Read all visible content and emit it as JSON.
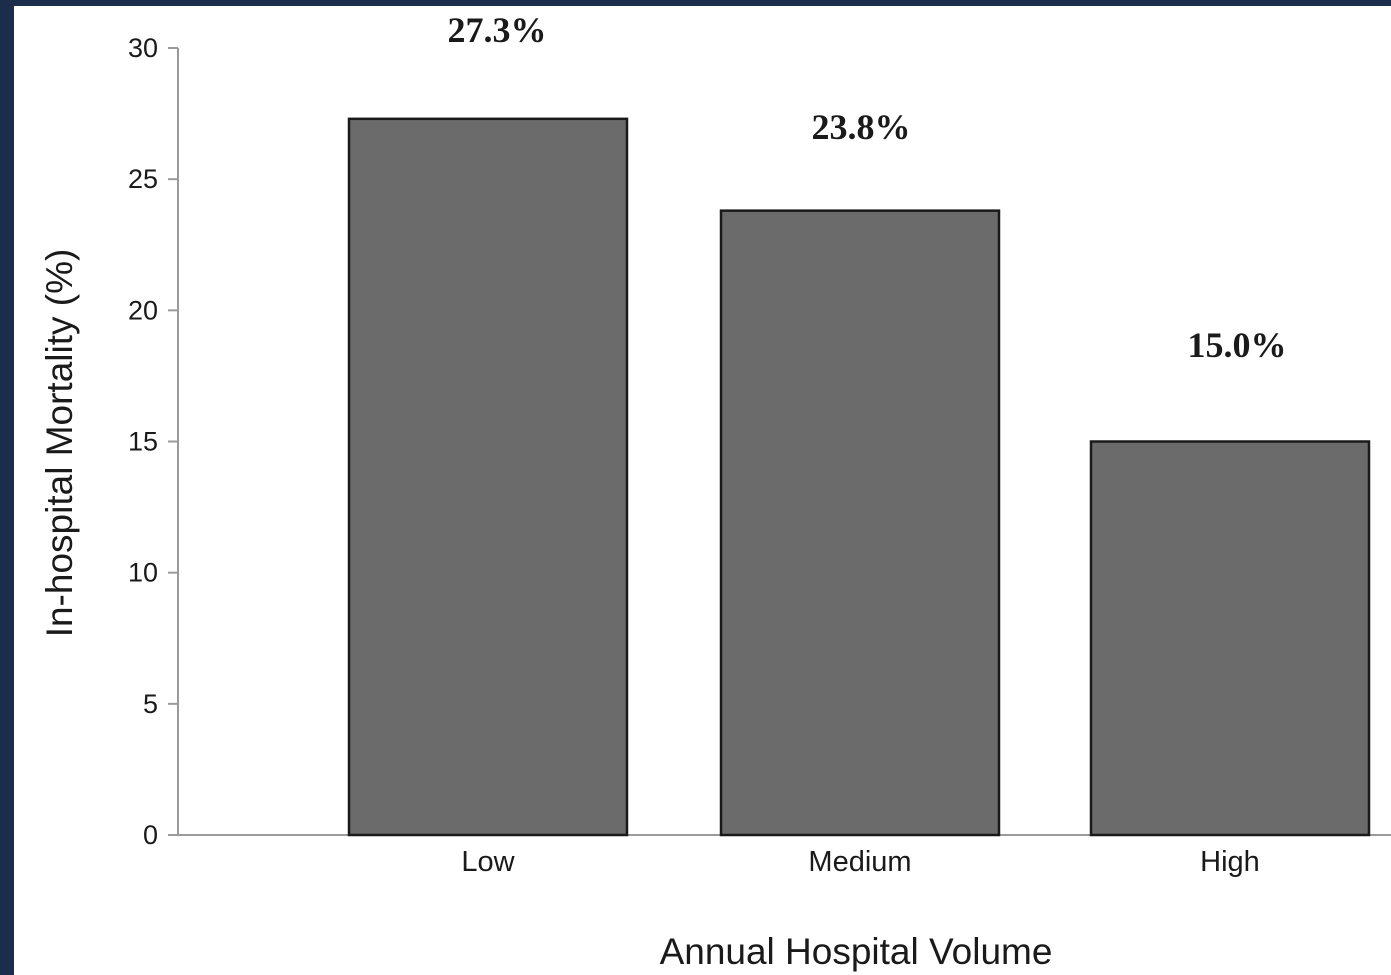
{
  "chart_data": {
    "type": "bar",
    "title": "",
    "xlabel": "Annual Hospital Volume",
    "ylabel": "In-hospital Mortality (%)",
    "categories": [
      "Low",
      "Medium",
      "High"
    ],
    "values": [
      27.3,
      23.8,
      15.0
    ],
    "data_labels": [
      "27.3%",
      "23.8%",
      "15.0%"
    ],
    "ylim": [
      0,
      30
    ],
    "yticks": [
      0,
      5,
      10,
      15,
      20,
      25,
      30
    ],
    "grid": false,
    "legend": "none",
    "bar_color": "#6b6b6b",
    "bar_edge_color": "#1a1a1a"
  }
}
